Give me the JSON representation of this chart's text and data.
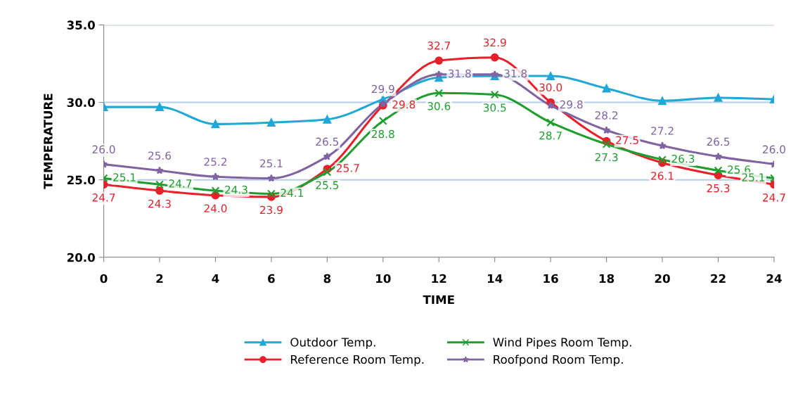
{
  "chart_data": {
    "type": "line",
    "xlabel": "TIME",
    "ylabel": "TEMPERATURE",
    "x": [
      0,
      2,
      4,
      6,
      8,
      10,
      12,
      14,
      16,
      18,
      20,
      22,
      24
    ],
    "xlim": [
      0,
      24
    ],
    "xticks": [
      0,
      2,
      4,
      6,
      8,
      10,
      12,
      14,
      16,
      18,
      20,
      22,
      24
    ],
    "ylim": [
      20,
      35
    ],
    "yticks": [
      {
        "value": 20,
        "label": "20.0"
      },
      {
        "value": 25,
        "label": "25.0"
      },
      {
        "value": 30,
        "label": "30.0"
      },
      {
        "value": 35,
        "label": "35.0"
      }
    ],
    "grid": "y",
    "legend": "bottom",
    "series": [
      {
        "name": "Outdoor Temp.",
        "color": "#1fa8d8",
        "marker": "triangle",
        "values": [
          29.7,
          29.7,
          28.6,
          28.7,
          28.9,
          30.2,
          31.6,
          31.7,
          31.7,
          30.9,
          30.1,
          30.3,
          30.2
        ]
      },
      {
        "name": "Reference Room Temp.",
        "color": "#e8202a",
        "marker": "circle",
        "values": [
          24.7,
          24.3,
          24.0,
          23.9,
          25.7,
          29.8,
          32.7,
          32.9,
          30.0,
          27.5,
          26.1,
          25.3,
          24.7
        ],
        "value_labels": [
          "24.7",
          "24.3",
          "24.0",
          "23.9",
          "25.7",
          "29.8",
          "32.7",
          "32.9",
          "30.0",
          "27.5",
          "26.1",
          "25.3",
          "24.7"
        ]
      },
      {
        "name": "Wind Pipes Room Temp.",
        "color": "#1e9e2e",
        "marker": "cross",
        "values": [
          25.1,
          24.7,
          24.3,
          24.1,
          25.5,
          28.8,
          30.6,
          30.5,
          28.7,
          27.3,
          26.3,
          25.6,
          25.1
        ],
        "value_labels": [
          "25.1",
          "24.7",
          "24.3",
          "24.1",
          "25.5",
          "28.8",
          "30.6",
          "30.5",
          "28.7",
          "27.3",
          "26.3",
          "25.6",
          "25.1"
        ]
      },
      {
        "name": "Roofpond Room Temp.",
        "color": "#8064a2",
        "marker": "star",
        "values": [
          26.0,
          25.6,
          25.2,
          25.1,
          26.5,
          29.9,
          31.8,
          31.8,
          29.8,
          28.2,
          27.2,
          26.5,
          26.0
        ],
        "value_labels": [
          "26.0",
          "25.6",
          "25.2",
          "25.1",
          "26.5",
          "29.9",
          "31.8",
          "31.8",
          "29.8",
          "28.2",
          "27.2",
          "26.5",
          "26.0"
        ]
      }
    ]
  }
}
